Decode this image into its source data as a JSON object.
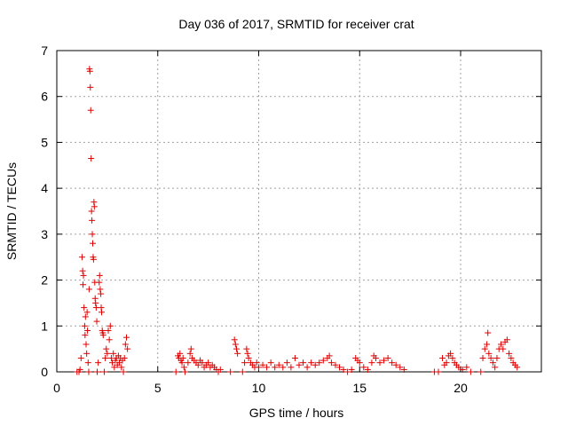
{
  "chart_data": {
    "type": "scatter",
    "title": "Day 036 of 2017, SRMTID for receiver crat",
    "xlabel": "GPS time / hours",
    "ylabel": "SRMTID / TECUs",
    "xlim": [
      0,
      24
    ],
    "ylim": [
      0,
      7
    ],
    "xticks": [
      0,
      5,
      10,
      15,
      20
    ],
    "yticks": [
      0,
      1,
      2,
      3,
      4,
      5,
      6,
      7
    ],
    "grid": true,
    "marker": "+",
    "marker_color": "#e00000",
    "series": [
      {
        "name": "SRMTID",
        "points": [
          [
            1.0,
            0.0
          ],
          [
            1.1,
            0.0
          ],
          [
            1.15,
            0.05
          ],
          [
            1.2,
            0.3
          ],
          [
            1.25,
            2.5
          ],
          [
            1.28,
            2.2
          ],
          [
            1.3,
            1.9
          ],
          [
            1.32,
            2.1
          ],
          [
            1.35,
            1.4
          ],
          [
            1.38,
            1.0
          ],
          [
            1.4,
            0.8
          ],
          [
            1.42,
            1.2
          ],
          [
            1.45,
            0.6
          ],
          [
            1.48,
            0.4
          ],
          [
            1.5,
            1.3
          ],
          [
            1.52,
            0.9
          ],
          [
            1.55,
            0.2
          ],
          [
            1.58,
            0.0
          ],
          [
            1.6,
            1.8
          ],
          [
            1.62,
            6.6
          ],
          [
            1.64,
            6.55
          ],
          [
            1.66,
            6.2
          ],
          [
            1.68,
            5.7
          ],
          [
            1.7,
            4.65
          ],
          [
            1.72,
            3.5
          ],
          [
            1.74,
            3.3
          ],
          [
            1.76,
            3.0
          ],
          [
            1.78,
            2.8
          ],
          [
            1.8,
            2.5
          ],
          [
            1.82,
            2.45
          ],
          [
            1.84,
            3.7
          ],
          [
            1.86,
            3.6
          ],
          [
            1.88,
            1.95
          ],
          [
            1.9,
            1.6
          ],
          [
            1.92,
            1.5
          ],
          [
            1.95,
            1.4
          ],
          [
            1.98,
            1.1
          ],
          [
            2.0,
            0.0
          ],
          [
            2.05,
            0.2
          ],
          [
            2.1,
            1.95
          ],
          [
            2.12,
            2.1
          ],
          [
            2.15,
            1.8
          ],
          [
            2.18,
            1.7
          ],
          [
            2.2,
            1.4
          ],
          [
            2.22,
            1.3
          ],
          [
            2.25,
            0.9
          ],
          [
            2.28,
            0.85
          ],
          [
            2.3,
            0.8
          ],
          [
            2.35,
            0.0
          ],
          [
            2.4,
            0.3
          ],
          [
            2.45,
            0.5
          ],
          [
            2.5,
            0.4
          ],
          [
            2.55,
            0.9
          ],
          [
            2.6,
            0.7
          ],
          [
            2.65,
            1.0
          ],
          [
            2.7,
            0.3
          ],
          [
            2.75,
            0.2
          ],
          [
            2.8,
            0.4
          ],
          [
            2.85,
            0.1
          ],
          [
            2.9,
            0.25
          ],
          [
            2.95,
            0.3
          ],
          [
            3.0,
            0.15
          ],
          [
            3.05,
            0.35
          ],
          [
            3.1,
            0.2
          ],
          [
            3.15,
            0.3
          ],
          [
            3.2,
            0.1
          ],
          [
            3.25,
            0.25
          ],
          [
            3.3,
            0.0
          ],
          [
            3.35,
            0.3
          ],
          [
            3.4,
            0.6
          ],
          [
            3.45,
            0.75
          ],
          [
            3.5,
            0.5
          ],
          [
            5.9,
            0.0
          ],
          [
            6.0,
            0.35
          ],
          [
            6.05,
            0.3
          ],
          [
            6.1,
            0.4
          ],
          [
            6.15,
            0.25
          ],
          [
            6.2,
            0.2
          ],
          [
            6.25,
            0.3
          ],
          [
            6.3,
            0.1
          ],
          [
            6.35,
            0.0
          ],
          [
            6.5,
            0.2
          ],
          [
            6.6,
            0.4
          ],
          [
            6.65,
            0.5
          ],
          [
            6.7,
            0.3
          ],
          [
            6.8,
            0.25
          ],
          [
            6.9,
            0.2
          ],
          [
            7.0,
            0.15
          ],
          [
            7.1,
            0.25
          ],
          [
            7.2,
            0.2
          ],
          [
            7.3,
            0.1
          ],
          [
            7.4,
            0.15
          ],
          [
            7.5,
            0.2
          ],
          [
            7.6,
            0.1
          ],
          [
            7.7,
            0.15
          ],
          [
            7.8,
            0.1
          ],
          [
            7.9,
            0.05
          ],
          [
            8.0,
            0.0
          ],
          [
            8.1,
            0.05
          ],
          [
            8.6,
            0.0
          ],
          [
            8.8,
            0.7
          ],
          [
            8.85,
            0.6
          ],
          [
            8.9,
            0.5
          ],
          [
            8.95,
            0.4
          ],
          [
            9.2,
            0.0
          ],
          [
            9.3,
            0.2
          ],
          [
            9.4,
            0.5
          ],
          [
            9.45,
            0.4
          ],
          [
            9.5,
            0.3
          ],
          [
            9.6,
            0.2
          ],
          [
            9.7,
            0.15
          ],
          [
            9.8,
            0.1
          ],
          [
            9.9,
            0.2
          ],
          [
            10.0,
            0.1
          ],
          [
            10.2,
            0.15
          ],
          [
            10.4,
            0.1
          ],
          [
            10.6,
            0.2
          ],
          [
            10.8,
            0.1
          ],
          [
            11.0,
            0.15
          ],
          [
            11.2,
            0.1
          ],
          [
            11.4,
            0.2
          ],
          [
            11.6,
            0.1
          ],
          [
            11.8,
            0.3
          ],
          [
            12.0,
            0.15
          ],
          [
            12.2,
            0.2
          ],
          [
            12.4,
            0.1
          ],
          [
            12.6,
            0.2
          ],
          [
            12.8,
            0.15
          ],
          [
            13.0,
            0.2
          ],
          [
            13.2,
            0.25
          ],
          [
            13.4,
            0.3
          ],
          [
            13.5,
            0.35
          ],
          [
            13.6,
            0.2
          ],
          [
            13.8,
            0.15
          ],
          [
            14.0,
            0.1
          ],
          [
            14.2,
            0.05
          ],
          [
            14.4,
            0.0
          ],
          [
            14.6,
            0.05
          ],
          [
            14.8,
            0.3
          ],
          [
            14.9,
            0.25
          ],
          [
            15.0,
            0.2
          ],
          [
            15.2,
            0.1
          ],
          [
            15.4,
            0.05
          ],
          [
            15.6,
            0.2
          ],
          [
            15.7,
            0.35
          ],
          [
            15.8,
            0.3
          ],
          [
            16.0,
            0.2
          ],
          [
            16.2,
            0.25
          ],
          [
            16.4,
            0.3
          ],
          [
            16.6,
            0.2
          ],
          [
            16.8,
            0.15
          ],
          [
            17.0,
            0.1
          ],
          [
            17.2,
            0.05
          ],
          [
            18.7,
            0.0
          ],
          [
            18.9,
            0.0
          ],
          [
            19.1,
            0.3
          ],
          [
            19.2,
            0.15
          ],
          [
            19.3,
            0.2
          ],
          [
            19.4,
            0.35
          ],
          [
            19.5,
            0.4
          ],
          [
            19.6,
            0.3
          ],
          [
            19.7,
            0.2
          ],
          [
            19.8,
            0.15
          ],
          [
            19.9,
            0.1
          ],
          [
            20.1,
            0.05
          ],
          [
            20.3,
            0.1
          ],
          [
            20.5,
            0.0
          ],
          [
            21.0,
            0.0
          ],
          [
            21.1,
            0.3
          ],
          [
            21.2,
            0.5
          ],
          [
            21.3,
            0.6
          ],
          [
            21.35,
            0.85
          ],
          [
            21.4,
            0.4
          ],
          [
            21.5,
            0.3
          ],
          [
            21.6,
            0.2
          ],
          [
            21.7,
            0.1
          ],
          [
            21.8,
            0.3
          ],
          [
            21.9,
            0.5
          ],
          [
            22.0,
            0.6
          ],
          [
            22.1,
            0.5
          ],
          [
            22.2,
            0.65
          ],
          [
            22.3,
            0.7
          ],
          [
            22.4,
            0.4
          ],
          [
            22.5,
            0.3
          ],
          [
            22.6,
            0.2
          ],
          [
            22.7,
            0.15
          ],
          [
            22.8,
            0.1
          ]
        ]
      }
    ]
  }
}
